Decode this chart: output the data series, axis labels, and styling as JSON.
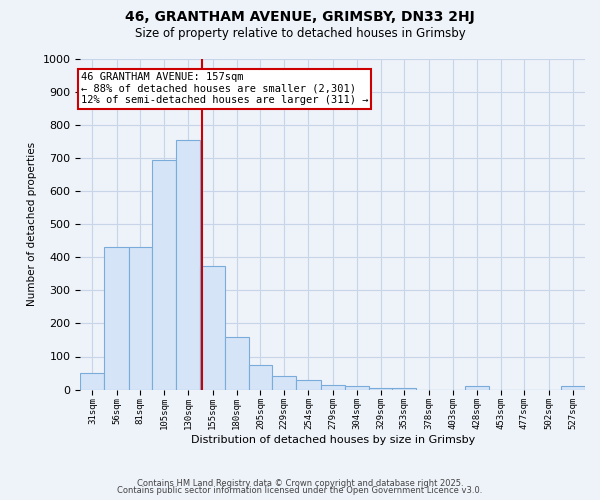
{
  "title": "46, GRANTHAM AVENUE, GRIMSBY, DN33 2HJ",
  "subtitle": "Size of property relative to detached houses in Grimsby",
  "xlabel": "Distribution of detached houses by size in Grimsby",
  "ylabel": "Number of detached properties",
  "bar_left_edges": [
    31,
    56,
    81,
    105,
    130,
    155,
    180,
    205,
    229,
    254,
    279,
    304,
    329,
    353,
    378,
    403,
    428,
    453,
    477,
    502,
    527
  ],
  "bar_right_edges": [
    56,
    81,
    105,
    130,
    155,
    180,
    205,
    229,
    254,
    279,
    304,
    329,
    353,
    378,
    403,
    428,
    453,
    477,
    502,
    527,
    552
  ],
  "bar_heights": [
    50,
    430,
    430,
    695,
    755,
    375,
    160,
    75,
    40,
    30,
    15,
    10,
    5,
    5,
    0,
    0,
    10,
    0,
    0,
    0,
    10
  ],
  "bar_color": "#d6e4f7",
  "bar_edge_color": "#7aacdb",
  "vline_x": 157,
  "vline_color": "#cc0000",
  "annotation_text": "46 GRANTHAM AVENUE: 157sqm\n← 88% of detached houses are smaller (2,301)\n12% of semi-detached houses are larger (311) →",
  "annotation_box_color": "#ffffff",
  "annotation_box_edge": "#cc0000",
  "ylim": [
    0,
    1000
  ],
  "yticks": [
    0,
    100,
    200,
    300,
    400,
    500,
    600,
    700,
    800,
    900,
    1000
  ],
  "bg_color": "#eef2f9",
  "grid_color": "#c8d4e8",
  "footer1": "Contains HM Land Registry data © Crown copyright and database right 2025.",
  "footer2": "Contains public sector information licensed under the Open Government Licence v3.0."
}
